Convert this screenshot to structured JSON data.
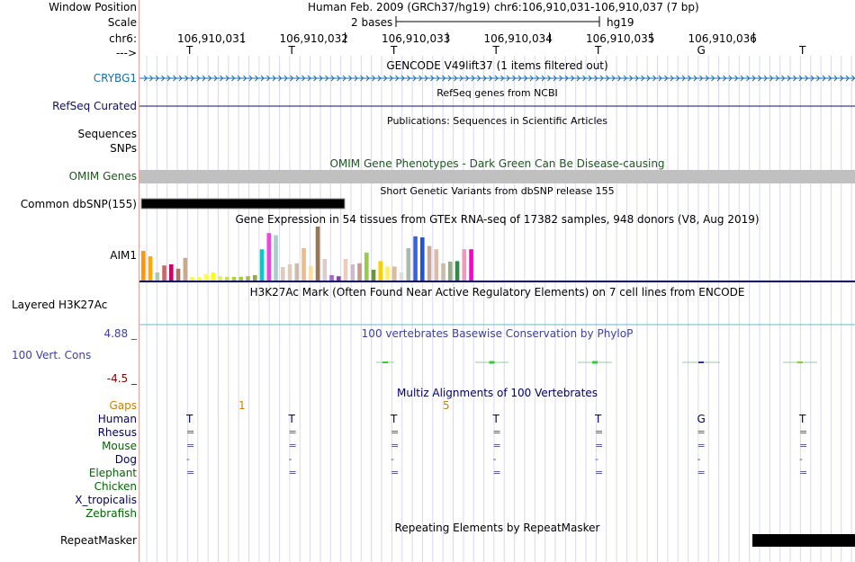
{
  "header": {
    "window_position_label": "Window Position",
    "scale_label": "Scale",
    "chrom_label": "chr6:",
    "strand_label": "--->",
    "assembly_title": "Human Feb. 2009 (GRCh37/hg19)",
    "position_text": "chr6:106,910,031-106,910,037 (7 bp)",
    "scale_text": "2 bases",
    "scale_assembly": "hg19",
    "coords": [
      "106,910,031",
      "106,910,032",
      "106,910,033",
      "106,910,034",
      "106,910,035",
      "106,910,036"
    ],
    "bases": [
      "T",
      "T",
      "T",
      "T",
      "T",
      "G",
      "T"
    ]
  },
  "tracks": {
    "gencode": {
      "title": "GENCODE V49lift37 (1 items filtered out)",
      "gene": "CRYBG1"
    },
    "refseq": {
      "title": "RefSeq genes from NCBI",
      "label": "RefSeq Curated"
    },
    "publications": {
      "title": "Publications: Sequences in Scientific Articles",
      "label_seq": "Sequences",
      "label_snps": "SNPs"
    },
    "omim": {
      "title": "OMIM Gene Phenotypes - Dark Green Can Be Disease-causing",
      "label": "OMIM Genes"
    },
    "dbsnp": {
      "title": "Short Genetic Variants from dbSNP release 155",
      "label": "Common dbSNP(155)"
    },
    "gtex": {
      "title": "Gene Expression in 54 tissues from GTEx RNA-seq of 17382 samples, 948 donors (V8, Aug 2019)",
      "label": "AIM1",
      "bars": [
        {
          "v": 0.55,
          "c": "#ff9900"
        },
        {
          "v": 0.45,
          "c": "#ffaa00"
        },
        {
          "v": 0.15,
          "c": "#aaccaa"
        },
        {
          "v": 0.28,
          "c": "#cc6666"
        },
        {
          "v": 0.3,
          "c": "#cc0066"
        },
        {
          "v": 0.22,
          "c": "#aa7766"
        },
        {
          "v": 0.42,
          "c": "#ccaa88"
        },
        {
          "v": 0.06,
          "c": "#ffff00"
        },
        {
          "v": 0.06,
          "c": "#ffff00"
        },
        {
          "v": 0.12,
          "c": "#ffff33"
        },
        {
          "v": 0.15,
          "c": "#ffff00"
        },
        {
          "v": 0.08,
          "c": "#ddee66"
        },
        {
          "v": 0.07,
          "c": "#ccdd55"
        },
        {
          "v": 0.07,
          "c": "#bbcc44"
        },
        {
          "v": 0.07,
          "c": "#aacc33"
        },
        {
          "v": 0.08,
          "c": "#aabb44"
        },
        {
          "v": 0.1,
          "c": "#99aa44"
        },
        {
          "v": 0.58,
          "c": "#00cccc"
        },
        {
          "v": 0.88,
          "c": "#ee44dd"
        },
        {
          "v": 0.84,
          "c": "#aacccc"
        },
        {
          "v": 0.25,
          "c": "#ddccbb"
        },
        {
          "v": 0.3,
          "c": "#ddccbb"
        },
        {
          "v": 0.32,
          "c": "#ccbbaa"
        },
        {
          "v": 0.6,
          "c": "#eebb88"
        },
        {
          "v": 0.27,
          "c": "#ffdd99"
        },
        {
          "v": 1.0,
          "c": "#997755"
        },
        {
          "v": 0.4,
          "c": "#ddcccc"
        },
        {
          "v": 0.1,
          "c": "#aa66cc"
        },
        {
          "v": 0.08,
          "c": "#8844aa"
        },
        {
          "v": 0.4,
          "c": "#eeccbb"
        },
        {
          "v": 0.3,
          "c": "#ccbbcc"
        },
        {
          "v": 0.32,
          "c": "#cc9988"
        },
        {
          "v": 0.52,
          "c": "#99cc44"
        },
        {
          "v": 0.2,
          "c": "#669933"
        },
        {
          "v": 0.36,
          "c": "#ffcc00"
        },
        {
          "v": 0.26,
          "c": "#ffee66"
        },
        {
          "v": 0.26,
          "c": "#ddbb99"
        },
        {
          "v": 0.15,
          "c": "#dddddd"
        },
        {
          "v": 0.6,
          "c": "#aabbaa"
        },
        {
          "v": 0.82,
          "c": "#3366dd"
        },
        {
          "v": 0.8,
          "c": "#2255cc"
        },
        {
          "v": 0.64,
          "c": "#ccaa99"
        },
        {
          "v": 0.58,
          "c": "#ddbbaa"
        },
        {
          "v": 0.32,
          "c": "#ccbbaa"
        },
        {
          "v": 0.35,
          "c": "#99aa88"
        },
        {
          "v": 0.36,
          "c": "#338844"
        },
        {
          "v": 0.58,
          "c": "#ee99bb"
        },
        {
          "v": 0.58,
          "c": "#ff00cc"
        }
      ]
    },
    "h3k27ac": {
      "title": "H3K27Ac Mark (Often Found Near Active Regulatory Elements) on 7 cell lines from ENCODE",
      "label": "Layered H3K27Ac"
    },
    "phylop": {
      "title": "100 vertebrates Basewise Conservation by PhyloP",
      "label": "100 Vert. Cons",
      "max": "4.88 _",
      "min": "-4.5 _"
    },
    "multiz": {
      "title": "Multiz Alignments of 100 Vertebrates",
      "gaps_label": "Gaps",
      "gap_counts": [
        "1",
        "5"
      ],
      "species": [
        {
          "name": "Human",
          "color": "#000066",
          "row": [
            "T",
            "T",
            "T",
            "T",
            "T",
            "G",
            "T"
          ]
        },
        {
          "name": "Rhesus",
          "color": "#000066",
          "row": [
            "=",
            "=",
            "=",
            "=",
            "=",
            "=",
            "="
          ]
        },
        {
          "name": "Mouse",
          "color": "#006600",
          "row": [
            "=",
            "=",
            "=",
            "=",
            "=",
            "=",
            "="
          ]
        },
        {
          "name": "Dog",
          "color": "#000066",
          "row": [
            "-",
            "-",
            "-",
            "-",
            "-",
            "-",
            "-"
          ]
        },
        {
          "name": "Elephant",
          "color": "#006600",
          "row": [
            "=",
            "=",
            "=",
            "=",
            "=",
            "=",
            "="
          ]
        },
        {
          "name": "Chicken",
          "color": "#006600",
          "row": [
            "",
            "",
            "",
            "",
            "",
            "",
            ""
          ]
        },
        {
          "name": "X_tropicalis",
          "color": "#000066",
          "row": [
            "",
            "",
            "",
            "",
            "",
            "",
            ""
          ]
        },
        {
          "name": "Zebrafish",
          "color": "#006600",
          "row": [
            "",
            "",
            "",
            "",
            "",
            "",
            ""
          ]
        }
      ]
    },
    "repeatmasker": {
      "title": "Repeating Elements by RepeatMasker",
      "label": "RepeatMasker"
    }
  },
  "colors": {
    "gencode": "#1a6ea8",
    "refseq": "#0c0c78",
    "omim": "#1a5a1a",
    "omim_bar": "#c0c0c0",
    "phylop_label": "#4040a0",
    "gaps": "#d08000",
    "phylop_min": "#800000",
    "grid": "#d8d8f0",
    "gtex_base": "#000066"
  }
}
